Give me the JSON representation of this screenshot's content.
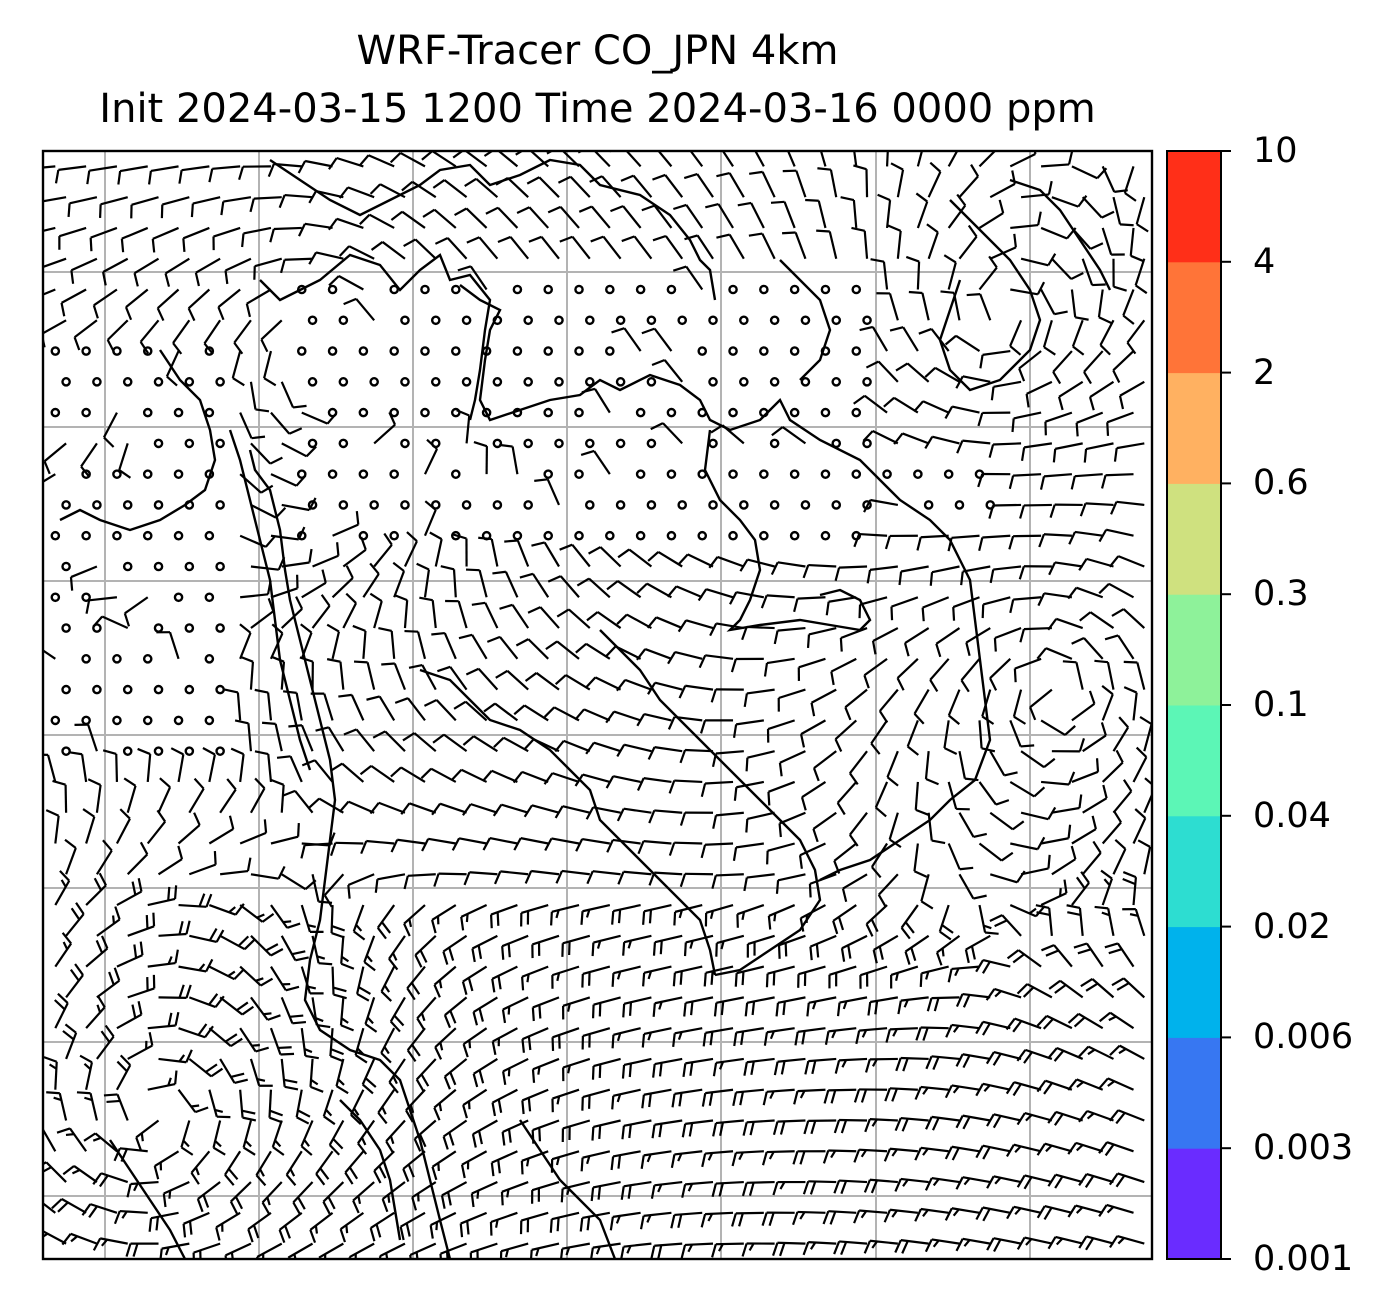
{
  "title": {
    "line1": "WRF-Tracer CO_JPN 4km",
    "line2": "Init 2024-03-15 1200 Time 2024-03-16 0000 ppm"
  },
  "colorbar": {
    "levels": [
      "0.001",
      "0.003",
      "0.006",
      "0.02",
      "0.04",
      "0.1",
      "0.3",
      "0.6",
      "2",
      "4",
      "10"
    ],
    "colors": [
      "#6a2cff",
      "#3777f2",
      "#00b2ec",
      "#2dddd1",
      "#5cf6b6",
      "#8ef29a",
      "#cfe17f",
      "#ffb161",
      "#ff7438",
      "#ff2f18"
    ]
  },
  "map": {
    "gridlines": true,
    "wind_barbs": true,
    "calm_markers": "circles",
    "coastlines": true
  }
}
